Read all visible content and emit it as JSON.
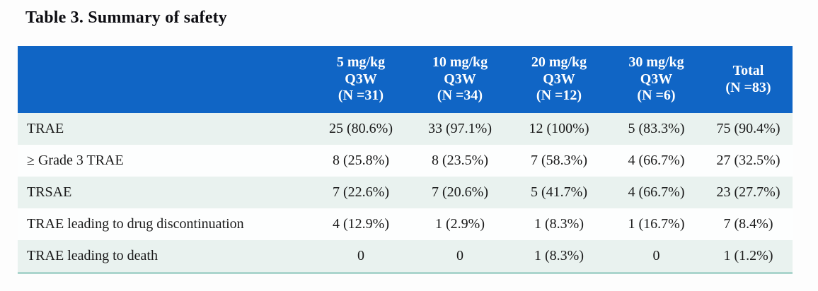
{
  "title": "Table 3. Summary of safety",
  "table": {
    "headers": [
      "5 mg/kg\nQ3W\n(N =31)",
      "10 mg/kg\nQ3W\n(N =34)",
      "20 mg/kg\nQ3W\n(N =12)",
      "30 mg/kg\nQ3W\n(N =6)",
      "Total\n(N =83)"
    ],
    "rows": [
      {
        "label": "TRAE",
        "values": [
          "25 (80.6%)",
          "33 (97.1%)",
          "12 (100%)",
          "5 (83.3%)",
          "75 (90.4%)"
        ]
      },
      {
        "label": "≥ Grade 3 TRAE",
        "values": [
          "8 (25.8%)",
          "8 (23.5%)",
          "7 (58.3%)",
          "4 (66.7%)",
          "27 (32.5%)"
        ]
      },
      {
        "label": "TRSAE",
        "values": [
          "7 (22.6%)",
          "7 (20.6%)",
          "5 (41.7%)",
          "4 (66.7%)",
          "23 (27.7%)"
        ]
      },
      {
        "label": "TRAE leading to drug discontinuation",
        "values": [
          "4 (12.9%)",
          "1 (2.9%)",
          "1 (8.3%)",
          "1 (16.7%)",
          "7 (8.4%)"
        ]
      },
      {
        "label": "TRAE leading to death",
        "values": [
          "0",
          "0",
          "1 (8.3%)",
          "0",
          "1 (1.2%)"
        ]
      }
    ]
  },
  "colors": {
    "header_bg": "#1065C5",
    "header_text": "#FFFFFF",
    "stripe_row_bg": "#E9F2EF",
    "plain_row_bg": "#FDFEFE",
    "bottom_border": "#ABD5CD",
    "body_text": "#1A1A1A"
  }
}
